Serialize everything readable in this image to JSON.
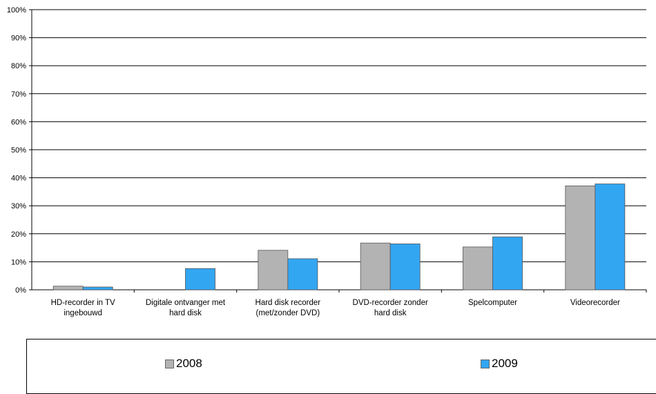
{
  "chart_data": {
    "type": "bar",
    "categories": [
      [
        "HD-recorder in TV",
        "ingebouwd"
      ],
      [
        "Digitale ontvanger met",
        "hard disk"
      ],
      [
        "Hard disk recorder",
        "(met/zonder DVD)"
      ],
      [
        "DVD-recorder zonder",
        "hard disk"
      ],
      [
        "Spelcomputer"
      ],
      [
        "Videorecorder"
      ]
    ],
    "series": [
      {
        "name": "2008",
        "color": "#b3b3b3",
        "values": [
          1.3,
          0,
          14.1,
          16.7,
          15.3,
          37.1
        ]
      },
      {
        "name": "2009",
        "color": "#33a6f2",
        "values": [
          1.0,
          7.6,
          11.1,
          16.4,
          18.9,
          37.8
        ]
      }
    ],
    "y_ticks": [
      "0%",
      "10%",
      "20%",
      "30%",
      "40%",
      "50%",
      "60%",
      "70%",
      "80%",
      "90%",
      "100%"
    ],
    "ylim": [
      0,
      100
    ],
    "grid": true,
    "legend_placement": "bottom"
  }
}
